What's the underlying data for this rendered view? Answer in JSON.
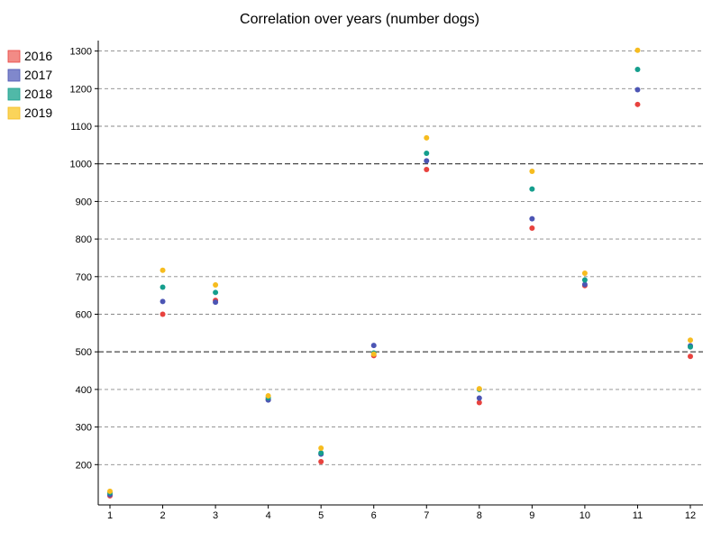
{
  "chart_data": {
    "type": "scatter",
    "title": "Correlation over years (number dogs)",
    "xlabel": "",
    "ylabel": "",
    "x": [
      1,
      2,
      3,
      4,
      5,
      6,
      7,
      8,
      9,
      10,
      11,
      12
    ],
    "x_ticks": [
      "1",
      "2",
      "3",
      "4",
      "5",
      "6",
      "7",
      "8",
      "9",
      "10",
      "11",
      "12"
    ],
    "y_ticks": [
      "200",
      "300",
      "400",
      "500",
      "600",
      "700",
      "800",
      "900",
      "1000",
      "1100",
      "1200",
      "1300"
    ],
    "ylim": [
      100,
      1325
    ],
    "grid": "horizontal dashed",
    "legend_position": "top-left",
    "series": [
      {
        "name": "2016",
        "color": "#e8423e",
        "values": [
          117,
          600,
          637,
          373,
          208,
          490,
          985,
          365,
          829,
          676,
          1158,
          488
        ]
      },
      {
        "name": "2017",
        "color": "#4c55b4",
        "values": [
          120,
          634,
          632,
          372,
          228,
          517,
          1008,
          377,
          854,
          679,
          1197,
          516
        ]
      },
      {
        "name": "2018",
        "color": "#159e8d",
        "values": [
          125,
          672,
          658,
          378,
          231,
          497,
          1028,
          400,
          933,
          691,
          1251,
          513
        ]
      },
      {
        "name": "2019",
        "color": "#f6bc1f",
        "values": [
          129,
          717,
          678,
          383,
          244,
          494,
          1069,
          402,
          980,
          709,
          1302,
          531
        ]
      }
    ],
    "legend_swatches": {
      "2016": "#f28b86",
      "2017": "#8088cc",
      "2018": "#50b9a8",
      "2019": "#fad45a"
    }
  }
}
